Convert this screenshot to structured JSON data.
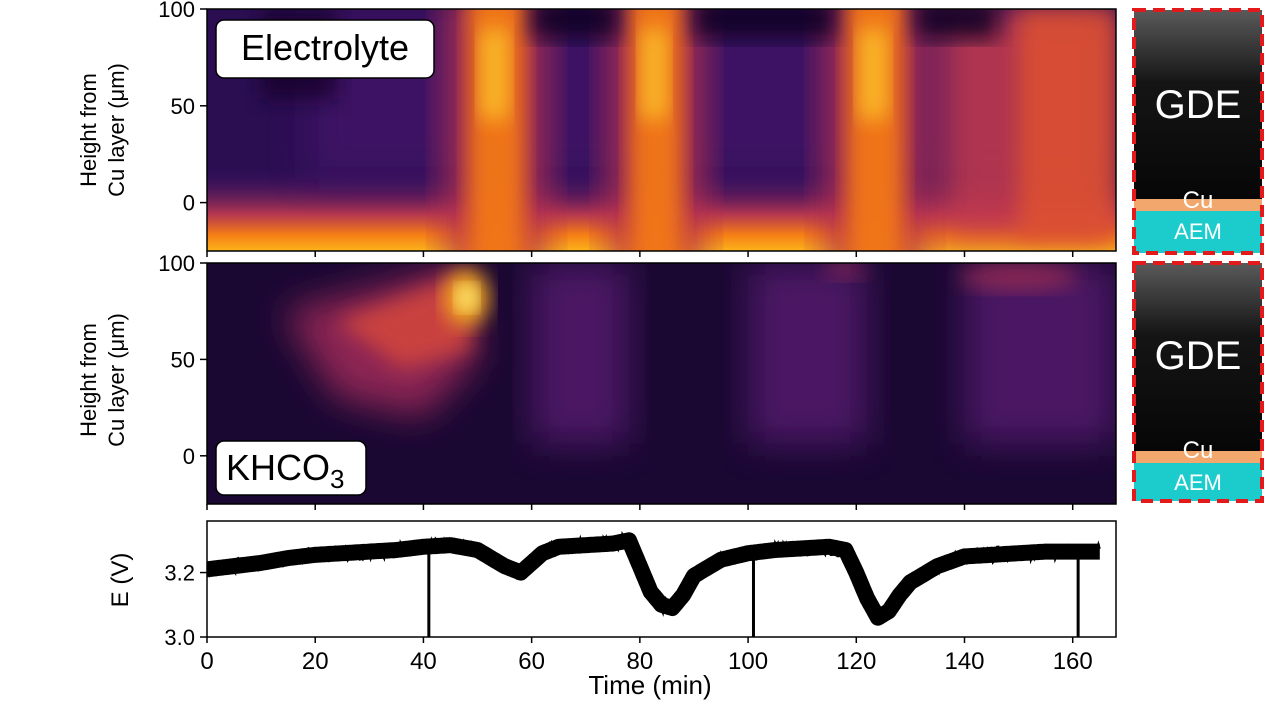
{
  "chart_data": [
    {
      "type": "heatmap",
      "label": "Electrolyte",
      "ylabel_line1": "Height from",
      "ylabel_line2": "Cu layer (μm)",
      "x_range": [
        0,
        168
      ],
      "y_range": [
        -25,
        100
      ],
      "yticks": [
        0,
        50,
        100
      ],
      "xticks": [
        0,
        20,
        40,
        60,
        80,
        100,
        120,
        140,
        160
      ],
      "colormap": "inferno",
      "bright_bands_min": [
        [
          46,
          61
        ],
        [
          76,
          90
        ],
        [
          116,
          131
        ]
      ],
      "side_panel": {
        "top": "GDE",
        "mid": "Cu",
        "bottom": "AEM"
      }
    },
    {
      "type": "heatmap",
      "label": "KHCO",
      "label_subscript": "3",
      "ylabel_line1": "Height from",
      "ylabel_line2": "Cu layer (μm)",
      "x_range": [
        0,
        168
      ],
      "y_range": [
        -25,
        100
      ],
      "yticks": [
        0,
        50,
        100
      ],
      "xticks": [
        0,
        20,
        40,
        60,
        80,
        100,
        120,
        140,
        160
      ],
      "colormap": "inferno",
      "hotspot": {
        "x_min": 48,
        "y_um": 82
      },
      "side_panel": {
        "top": "GDE",
        "mid": "Cu",
        "bottom": "AEM"
      }
    },
    {
      "type": "line",
      "ylabel": "E (V)",
      "xlabel": "Time (min)",
      "xlim": [
        0,
        168
      ],
      "ylim": [
        3.0,
        3.36
      ],
      "yticks": [
        3.0,
        3.2
      ],
      "xticks": [
        0,
        20,
        40,
        60,
        80,
        100,
        120,
        140,
        160
      ],
      "x": [
        0,
        5,
        10,
        15,
        20,
        25,
        30,
        35,
        40,
        45,
        50,
        55,
        58,
        60,
        62,
        65,
        70,
        75,
        78,
        80,
        82,
        84,
        86,
        88,
        90,
        95,
        100,
        105,
        110,
        115,
        118,
        120,
        122,
        124,
        126,
        128,
        130,
        135,
        140,
        145,
        150,
        155,
        160,
        165
      ],
      "y": [
        3.21,
        3.22,
        3.23,
        3.245,
        3.255,
        3.26,
        3.265,
        3.27,
        3.28,
        3.285,
        3.27,
        3.22,
        3.2,
        3.23,
        3.26,
        3.28,
        3.285,
        3.29,
        3.3,
        3.22,
        3.14,
        3.1,
        3.09,
        3.13,
        3.19,
        3.24,
        3.26,
        3.27,
        3.275,
        3.28,
        3.27,
        3.2,
        3.12,
        3.06,
        3.08,
        3.13,
        3.17,
        3.22,
        3.25,
        3.255,
        3.26,
        3.265,
        3.265,
        3.265
      ],
      "spikes": [
        {
          "x": 41,
          "y": 3.0
        },
        {
          "x": 101,
          "y": 3.0
        },
        {
          "x": 161,
          "y": 3.0
        }
      ]
    }
  ]
}
